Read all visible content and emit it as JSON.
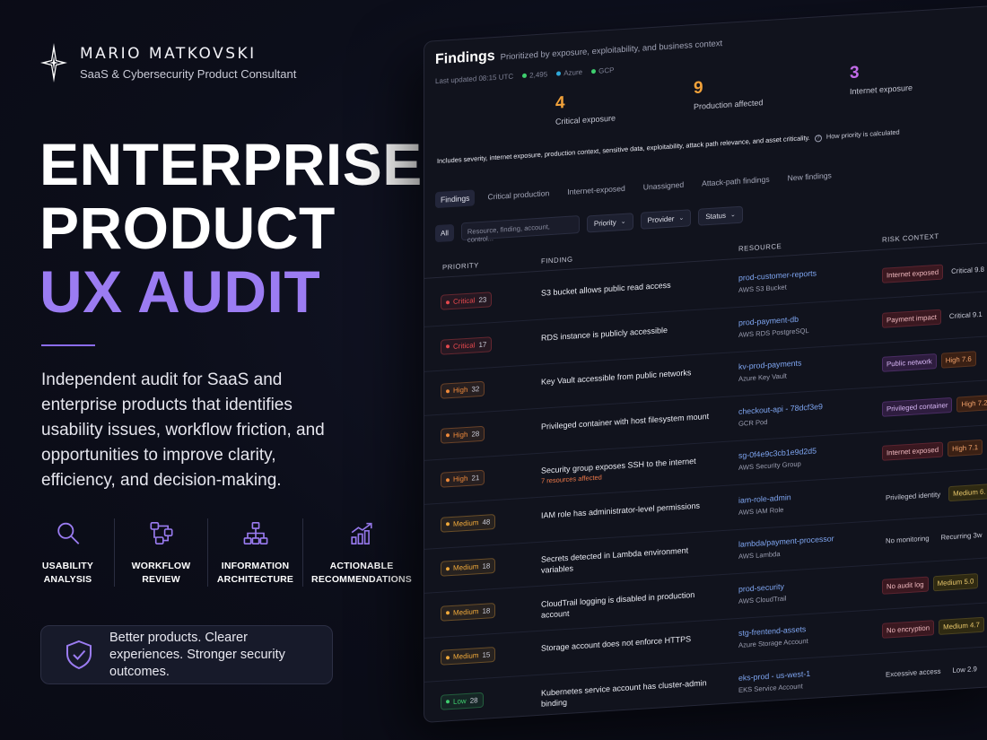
{
  "brand": {
    "name": "MARIO MATKOVSKI",
    "subtitle": "SaaS & Cybersecurity Product Consultant",
    "logo_icon": "star-diamond-icon"
  },
  "hero": {
    "line1": "ENTERPRISE",
    "line2": "PRODUCT",
    "line3": "UX AUDIT",
    "accent_color": "#9b7cf2"
  },
  "lede": "Independent audit for SaaS and enterprise products that identifies usability issues, workflow friction, and opportunities to improve clarity, efficiency, and decision-making.",
  "features": [
    {
      "icon": "magnifier-icon",
      "line1": "USABILITY",
      "line2": "ANALYSIS"
    },
    {
      "icon": "workflow-icon",
      "line1": "WORKFLOW",
      "line2": "REVIEW"
    },
    {
      "icon": "hierarchy-icon",
      "line1": "INFORMATION",
      "line2": "ARCHITECTURE"
    },
    {
      "icon": "growth-chart-icon",
      "line1": "ACTIONABLE",
      "line2": "RECOMMENDATIONS"
    }
  ],
  "tagline": {
    "icon": "shield-check-icon",
    "text": "Better products. Clearer experiences. Stronger security outcomes."
  },
  "dashboard": {
    "title": "Findings",
    "subtitle": "Prioritized by exposure, exploitability, and business context",
    "last_updated": "Last updated 08:15 UTC",
    "providers": [
      {
        "label": "2,495",
        "color": "#3ecf6e"
      },
      {
        "label": "Azure",
        "color": "#2fa8d8"
      },
      {
        "label": "GCP",
        "color": "#3ecf6e"
      }
    ],
    "stats": [
      {
        "value": "4",
        "label": "Critical exposure",
        "color": "#f2a23a"
      },
      {
        "value": "9",
        "label": "Production affected",
        "color": "#f2a23a"
      },
      {
        "value": "3",
        "label": "Internet exposure",
        "color": "#c26be8"
      }
    ],
    "note": "Includes severity, internet exposure, production context, sensitive data, exploitability, attack path relevance, and asset criticality.",
    "note_link": "How priority is calculated",
    "tabs": [
      "Findings",
      "Critical production",
      "Internet-exposed",
      "Unassigned",
      "Attack-path findings",
      "New findings"
    ],
    "filters": {
      "all": "All",
      "search_placeholder": "Resource, finding, account, control...",
      "priority": "Priority",
      "provider": "Provider",
      "status": "Status"
    },
    "columns": {
      "priority": "PRIORITY",
      "finding": "FINDING",
      "resource": "RESOURCE",
      "risk": "RISK CONTEXT"
    },
    "rows": [
      {
        "level": "Critical",
        "count": "23",
        "finding": "S3 bucket allows public read access",
        "note": "",
        "resource": "prod-customer-reports",
        "resource_type": "AWS S3 Bucket",
        "risk": "Internet exposed",
        "risk_style": "red",
        "score": "Critical 9.8",
        "score_style": "c"
      },
      {
        "level": "Critical",
        "count": "17",
        "finding": "RDS instance is publicly accessible",
        "note": "",
        "resource": "prod-payment-db",
        "resource_type": "AWS RDS PostgreSQL",
        "risk": "Payment impact",
        "risk_style": "red",
        "score": "Critical 9.1",
        "score_style": "c"
      },
      {
        "level": "High",
        "count": "32",
        "finding": "Key Vault accessible from public networks",
        "note": "",
        "resource": "kv-prod-payments",
        "resource_type": "Azure Key Vault",
        "risk": "Public network",
        "risk_style": "purple",
        "score": "High 7.6",
        "score_style": "h"
      },
      {
        "level": "High",
        "count": "28",
        "finding": "Privileged container with host filesystem mount",
        "note": "",
        "resource": "checkout-api - 78dcf3e9",
        "resource_type": "GCR Pod",
        "risk": "Privileged container",
        "risk_style": "purple",
        "score": "High 7.2",
        "score_style": "h"
      },
      {
        "level": "High",
        "count": "21",
        "finding": "Security group exposes SSH to the internet",
        "note": "7 resources affected",
        "resource": "sg-0f4e9c3cb1e9d2d5",
        "resource_type": "AWS Security Group",
        "risk": "Internet exposed",
        "risk_style": "red",
        "score": "High 7.1",
        "score_style": "h"
      },
      {
        "level": "Medium",
        "count": "48",
        "finding": "IAM role has administrator-level permissions",
        "note": "",
        "resource": "iam-role-admin",
        "resource_type": "AWS IAM Role",
        "risk": "Privileged identity",
        "risk_style": "plain",
        "score": "Medium 6.",
        "score_style": "m"
      },
      {
        "level": "Medium",
        "count": "18",
        "finding": "Secrets detected in Lambda environment variables",
        "note": "",
        "resource": "lambda/payment-processor",
        "resource_type": "AWS Lambda",
        "risk": "No monitoring",
        "risk_style": "plain",
        "score": "Recurring 3w",
        "score_style": "l"
      },
      {
        "level": "Medium",
        "count": "18",
        "finding": "CloudTrail logging is disabled in production account",
        "note": "",
        "resource": "prod-security",
        "resource_type": "AWS CloudTrail",
        "risk": "No audit log",
        "risk_style": "red",
        "score": "Medium 5.0",
        "score_style": "m"
      },
      {
        "level": "Medium",
        "count": "15",
        "finding": "Storage account does not enforce HTTPS",
        "note": "",
        "resource": "stg-frentend-assets",
        "resource_type": "Azure Storage Account",
        "risk": "No encryption",
        "risk_style": "red",
        "score": "Medium 4.7",
        "score_style": "m"
      },
      {
        "level": "Low",
        "count": "28",
        "finding": "Kubernetes service account has cluster-admin binding",
        "note": "",
        "resource": "eks-prod - us-west-1",
        "resource_type": "EKS Service Account",
        "risk": "Excessive access",
        "risk_style": "plain",
        "score": "Low 2.9",
        "score_style": "l"
      }
    ],
    "level_colors": {
      "Critical": "#e5484d",
      "High": "#f08a3a",
      "Medium": "#f0a93a",
      "Low": "#3ecf6e"
    }
  }
}
